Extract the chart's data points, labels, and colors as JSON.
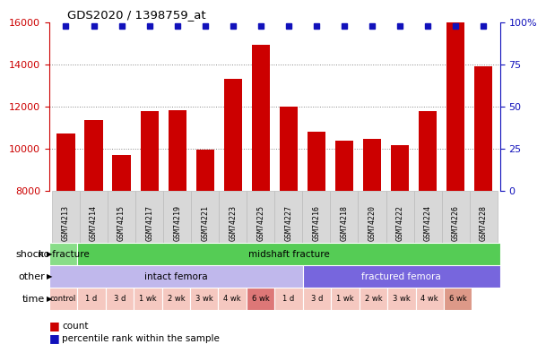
{
  "title": "GDS2020 / 1398759_at",
  "samples": [
    "GSM74213",
    "GSM74214",
    "GSM74215",
    "GSM74217",
    "GSM74219",
    "GSM74221",
    "GSM74223",
    "GSM74225",
    "GSM74227",
    "GSM74216",
    "GSM74218",
    "GSM74220",
    "GSM74222",
    "GSM74224",
    "GSM74226",
    "GSM74228"
  ],
  "counts": [
    10700,
    11350,
    9700,
    11750,
    11800,
    9950,
    13300,
    14900,
    12000,
    10800,
    10350,
    10450,
    10150,
    11750,
    16000,
    13900
  ],
  "ylim_left": [
    8000,
    16000
  ],
  "yticks_left": [
    8000,
    10000,
    12000,
    14000,
    16000
  ],
  "yticks_right": [
    0,
    25,
    50,
    75,
    100
  ],
  "bar_color": "#cc0000",
  "percentile_color": "#1111bb",
  "grid_color": "#888888",
  "left_label_color": "#cc0000",
  "right_label_color": "#1111bb",
  "bg_color": "#ffffff",
  "shock_no_fracture_color": "#88dd88",
  "shock_midshaft_color": "#55cc55",
  "other_intact_color": "#c0b8ec",
  "other_fractured_color": "#7766dd",
  "time_light_color": "#f5c8c0",
  "time_dark1_color": "#dd8888",
  "time_dark2_color": "#cc9988",
  "time_data": [
    {
      "label": "control",
      "color": "#f5c8c0"
    },
    {
      "label": "1 d",
      "color": "#f5c8c0"
    },
    {
      "label": "3 d",
      "color": "#f5c8c0"
    },
    {
      "label": "1 wk",
      "color": "#f5c8c0"
    },
    {
      "label": "2 wk",
      "color": "#f5c8c0"
    },
    {
      "label": "3 wk",
      "color": "#f5c8c0"
    },
    {
      "label": "4 wk",
      "color": "#f5c8c0"
    },
    {
      "label": "6 wk",
      "color": "#dd7777"
    },
    {
      "label": "1 d",
      "color": "#f5c8c0"
    },
    {
      "label": "3 d",
      "color": "#f5c8c0"
    },
    {
      "label": "1 wk",
      "color": "#f5c8c0"
    },
    {
      "label": "2 wk",
      "color": "#f5c8c0"
    },
    {
      "label": "3 wk",
      "color": "#f5c8c0"
    },
    {
      "label": "4 wk",
      "color": "#f5c8c0"
    },
    {
      "label": "6 wk",
      "color": "#dd9988"
    }
  ]
}
